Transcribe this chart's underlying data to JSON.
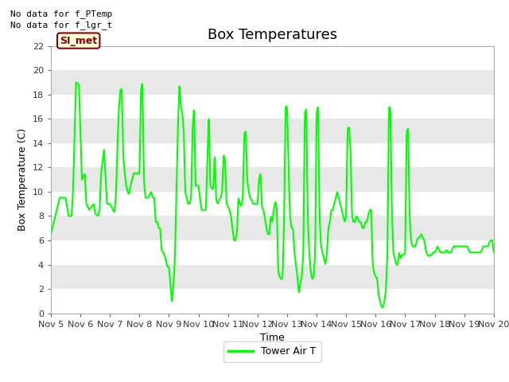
{
  "title": "Box Temperatures",
  "ylabel": "Box Temperature (C)",
  "xlabel": "Time",
  "legend_label": "Tower Air T",
  "no_data_labels": [
    "No data for f_PTemp",
    "No data for f_lgr_t"
  ],
  "si_met_label": "SI_met",
  "line_color": "#00FF00",
  "line_width": 1.5,
  "fig_bg_color": "#FFFFFF",
  "plot_bg_color": "#E8E8E8",
  "band_color": "#FFFFFF",
  "ylim": [
    0,
    22
  ],
  "yticks": [
    0,
    2,
    4,
    6,
    8,
    10,
    12,
    14,
    16,
    18,
    20,
    22
  ],
  "xlim": [
    5,
    20
  ],
  "xtick_positions": [
    5,
    6,
    7,
    8,
    9,
    10,
    11,
    12,
    13,
    14,
    15,
    16,
    17,
    18,
    19,
    20
  ],
  "xtick_labels": [
    "Nov 5",
    "Nov 6",
    "Nov 7",
    "Nov 8",
    "Nov 9",
    "Nov 10",
    "Nov 11",
    "Nov 12",
    "Nov 13",
    "Nov 14",
    "Nov 15",
    "Nov 16",
    "Nov 17",
    "Nov 18",
    "Nov 19",
    "Nov 20"
  ],
  "title_fontsize": 13,
  "axis_label_fontsize": 9,
  "tick_fontsize": 8,
  "legend_fontsize": 9,
  "nodata_fontsize": 8,
  "waypoints": [
    [
      0.0,
      6.5
    ],
    [
      0.15,
      8.0
    ],
    [
      0.3,
      9.5
    ],
    [
      0.5,
      9.5
    ],
    [
      0.6,
      8.0
    ],
    [
      0.7,
      8.0
    ],
    [
      0.75,
      10.0
    ],
    [
      0.85,
      19.0
    ],
    [
      0.95,
      18.8
    ],
    [
      1.05,
      11.0
    ],
    [
      1.15,
      11.5
    ],
    [
      1.2,
      9.0
    ],
    [
      1.3,
      8.5
    ],
    [
      1.45,
      9.0
    ],
    [
      1.5,
      8.2
    ],
    [
      1.6,
      8.0
    ],
    [
      1.65,
      8.5
    ],
    [
      1.7,
      11.5
    ],
    [
      1.8,
      13.5
    ],
    [
      1.9,
      9.0
    ],
    [
      2.0,
      9.0
    ],
    [
      2.1,
      8.5
    ],
    [
      2.15,
      8.3
    ],
    [
      2.2,
      9.5
    ],
    [
      2.25,
      13.5
    ],
    [
      2.3,
      16.7
    ],
    [
      2.35,
      18.3
    ],
    [
      2.4,
      18.5
    ],
    [
      2.45,
      13.0
    ],
    [
      2.5,
      11.5
    ],
    [
      2.55,
      10.5
    ],
    [
      2.6,
      10.0
    ],
    [
      2.65,
      9.8
    ],
    [
      2.7,
      10.5
    ],
    [
      2.8,
      11.5
    ],
    [
      2.9,
      11.5
    ],
    [
      3.0,
      11.5
    ],
    [
      3.05,
      18.3
    ],
    [
      3.1,
      19.0
    ],
    [
      3.15,
      11.0
    ],
    [
      3.2,
      9.5
    ],
    [
      3.25,
      9.5
    ],
    [
      3.3,
      9.5
    ],
    [
      3.35,
      9.8
    ],
    [
      3.4,
      10.0
    ],
    [
      3.45,
      9.5
    ],
    [
      3.5,
      9.5
    ],
    [
      3.55,
      7.5
    ],
    [
      3.6,
      7.5
    ],
    [
      3.65,
      7.0
    ],
    [
      3.7,
      7.0
    ],
    [
      3.75,
      5.2
    ],
    [
      3.85,
      4.8
    ],
    [
      3.95,
      3.8
    ],
    [
      4.0,
      3.8
    ],
    [
      4.05,
      2.3
    ],
    [
      4.1,
      0.9
    ],
    [
      4.15,
      2.3
    ],
    [
      4.2,
      4.5
    ],
    [
      4.25,
      9.8
    ],
    [
      4.3,
      15.0
    ],
    [
      4.35,
      18.8
    ],
    [
      4.4,
      17.0
    ],
    [
      4.45,
      16.5
    ],
    [
      4.5,
      15.0
    ],
    [
      4.55,
      10.0
    ],
    [
      4.6,
      9.5
    ],
    [
      4.65,
      9.0
    ],
    [
      4.7,
      9.0
    ],
    [
      4.75,
      9.5
    ],
    [
      4.8,
      15.2
    ],
    [
      4.85,
      17.0
    ],
    [
      4.9,
      10.5
    ],
    [
      5.0,
      10.5
    ],
    [
      5.05,
      9.5
    ],
    [
      5.1,
      8.5
    ],
    [
      5.15,
      8.5
    ],
    [
      5.2,
      8.5
    ],
    [
      5.25,
      8.5
    ],
    [
      5.3,
      12.5
    ],
    [
      5.35,
      16.5
    ],
    [
      5.4,
      10.5
    ],
    [
      5.45,
      10.3
    ],
    [
      5.5,
      10.2
    ],
    [
      5.55,
      13.2
    ],
    [
      5.6,
      9.3
    ],
    [
      5.65,
      9.0
    ],
    [
      5.7,
      9.3
    ],
    [
      5.75,
      9.5
    ],
    [
      5.8,
      10.0
    ],
    [
      5.85,
      13.0
    ],
    [
      5.9,
      12.5
    ],
    [
      5.95,
      9.0
    ],
    [
      6.0,
      8.8
    ],
    [
      6.05,
      8.5
    ],
    [
      6.1,
      8.0
    ],
    [
      6.15,
      7.0
    ],
    [
      6.2,
      6.0
    ],
    [
      6.25,
      6.0
    ],
    [
      6.3,
      6.5
    ],
    [
      6.35,
      9.5
    ],
    [
      6.4,
      9.0
    ],
    [
      6.45,
      8.8
    ],
    [
      6.5,
      9.5
    ],
    [
      6.55,
      14.7
    ],
    [
      6.6,
      15.0
    ],
    [
      6.65,
      11.0
    ],
    [
      6.7,
      10.0
    ],
    [
      6.75,
      9.5
    ],
    [
      6.8,
      9.3
    ],
    [
      6.85,
      9.0
    ],
    [
      6.9,
      9.0
    ],
    [
      6.95,
      9.0
    ],
    [
      7.0,
      9.0
    ],
    [
      7.05,
      11.0
    ],
    [
      7.1,
      11.5
    ],
    [
      7.15,
      8.7
    ],
    [
      7.2,
      8.5
    ],
    [
      7.25,
      7.8
    ],
    [
      7.3,
      7.0
    ],
    [
      7.35,
      6.5
    ],
    [
      7.4,
      6.5
    ],
    [
      7.45,
      8.0
    ],
    [
      7.5,
      7.5
    ],
    [
      7.55,
      8.5
    ],
    [
      7.6,
      9.2
    ],
    [
      7.65,
      8.7
    ],
    [
      7.7,
      3.5
    ],
    [
      7.75,
      3.0
    ],
    [
      7.8,
      2.8
    ],
    [
      7.85,
      3.0
    ],
    [
      7.9,
      8.0
    ],
    [
      7.95,
      17.0
    ],
    [
      8.0,
      17.0
    ],
    [
      8.05,
      12.0
    ],
    [
      8.1,
      8.0
    ],
    [
      8.15,
      7.0
    ],
    [
      8.2,
      7.0
    ],
    [
      8.25,
      5.0
    ],
    [
      8.3,
      4.0
    ],
    [
      8.35,
      3.0
    ],
    [
      8.4,
      1.6
    ],
    [
      8.45,
      2.5
    ],
    [
      8.5,
      3.0
    ],
    [
      8.55,
      5.0
    ],
    [
      8.6,
      16.5
    ],
    [
      8.65,
      16.8
    ],
    [
      8.7,
      8.0
    ],
    [
      8.75,
      5.0
    ],
    [
      8.8,
      3.5
    ],
    [
      8.85,
      2.8
    ],
    [
      8.9,
      3.0
    ],
    [
      8.95,
      4.8
    ],
    [
      9.0,
      16.5
    ],
    [
      9.05,
      17.0
    ],
    [
      9.1,
      8.0
    ],
    [
      9.15,
      5.5
    ],
    [
      9.2,
      5.0
    ],
    [
      9.25,
      4.5
    ],
    [
      9.3,
      4.0
    ],
    [
      9.35,
      5.0
    ],
    [
      9.4,
      7.0
    ],
    [
      9.45,
      7.5
    ],
    [
      9.5,
      8.5
    ],
    [
      9.55,
      8.5
    ],
    [
      9.6,
      9.0
    ],
    [
      9.65,
      9.5
    ],
    [
      9.7,
      10.0
    ],
    [
      9.75,
      9.5
    ],
    [
      9.8,
      9.0
    ],
    [
      9.85,
      8.5
    ],
    [
      9.9,
      8.0
    ],
    [
      9.95,
      7.5
    ],
    [
      10.0,
      8.0
    ],
    [
      10.05,
      15.2
    ],
    [
      10.1,
      15.3
    ],
    [
      10.15,
      13.3
    ],
    [
      10.2,
      8.0
    ],
    [
      10.25,
      7.5
    ],
    [
      10.3,
      7.5
    ],
    [
      10.35,
      8.0
    ],
    [
      10.4,
      7.8
    ],
    [
      10.45,
      7.5
    ],
    [
      10.5,
      7.5
    ],
    [
      10.55,
      7.0
    ],
    [
      10.6,
      7.0
    ],
    [
      10.65,
      7.5
    ],
    [
      10.7,
      7.5
    ],
    [
      10.75,
      8.0
    ],
    [
      10.8,
      8.5
    ],
    [
      10.85,
      8.5
    ],
    [
      10.9,
      4.0
    ],
    [
      10.95,
      3.3
    ],
    [
      11.0,
      3.0
    ],
    [
      11.05,
      2.9
    ],
    [
      11.1,
      1.5
    ],
    [
      11.15,
      1.0
    ],
    [
      11.2,
      0.5
    ],
    [
      11.25,
      0.5
    ],
    [
      11.3,
      1.0
    ],
    [
      11.35,
      2.0
    ],
    [
      11.4,
      5.0
    ],
    [
      11.45,
      17.0
    ],
    [
      11.5,
      16.8
    ],
    [
      11.55,
      8.5
    ],
    [
      11.6,
      5.0
    ],
    [
      11.65,
      4.5
    ],
    [
      11.7,
      4.0
    ],
    [
      11.75,
      4.0
    ],
    [
      11.8,
      5.0
    ],
    [
      11.85,
      4.5
    ],
    [
      11.9,
      4.8
    ],
    [
      11.95,
      4.8
    ],
    [
      12.0,
      5.0
    ],
    [
      12.05,
      15.0
    ],
    [
      12.1,
      15.2
    ],
    [
      12.15,
      8.0
    ],
    [
      12.2,
      6.0
    ],
    [
      12.25,
      5.5
    ],
    [
      12.3,
      5.5
    ],
    [
      12.35,
      5.5
    ],
    [
      12.4,
      6.0
    ],
    [
      12.45,
      6.2
    ],
    [
      12.5,
      6.3
    ],
    [
      12.55,
      6.5
    ],
    [
      12.6,
      6.2
    ],
    [
      12.65,
      6.0
    ],
    [
      12.7,
      5.2
    ],
    [
      12.75,
      4.8
    ],
    [
      12.8,
      4.7
    ],
    [
      12.85,
      4.8
    ],
    [
      12.9,
      4.8
    ],
    [
      12.95,
      5.0
    ],
    [
      13.0,
      5.0
    ],
    [
      13.05,
      5.2
    ],
    [
      13.1,
      5.5
    ],
    [
      13.15,
      5.2
    ],
    [
      13.2,
      5.0
    ],
    [
      13.25,
      5.0
    ],
    [
      13.3,
      5.0
    ],
    [
      13.35,
      5.0
    ],
    [
      13.4,
      5.2
    ],
    [
      13.45,
      5.0
    ],
    [
      13.5,
      5.0
    ],
    [
      13.55,
      5.0
    ],
    [
      13.6,
      5.3
    ],
    [
      13.65,
      5.5
    ],
    [
      13.7,
      5.5
    ],
    [
      13.75,
      5.5
    ],
    [
      13.8,
      5.5
    ],
    [
      13.85,
      5.5
    ],
    [
      13.9,
      5.5
    ],
    [
      13.95,
      5.5
    ],
    [
      14.0,
      5.5
    ],
    [
      14.05,
      5.5
    ],
    [
      14.1,
      5.5
    ],
    [
      14.15,
      5.2
    ],
    [
      14.2,
      5.0
    ],
    [
      14.25,
      5.0
    ],
    [
      14.3,
      5.0
    ],
    [
      14.35,
      5.0
    ],
    [
      14.4,
      5.0
    ],
    [
      14.45,
      5.0
    ],
    [
      14.5,
      5.0
    ],
    [
      14.55,
      5.0
    ],
    [
      14.6,
      5.2
    ],
    [
      14.65,
      5.5
    ],
    [
      14.7,
      5.5
    ],
    [
      14.75,
      5.5
    ],
    [
      14.8,
      5.5
    ],
    [
      14.85,
      5.8
    ],
    [
      14.9,
      6.0
    ],
    [
      14.95,
      6.0
    ],
    [
      15.0,
      5.0
    ]
  ]
}
